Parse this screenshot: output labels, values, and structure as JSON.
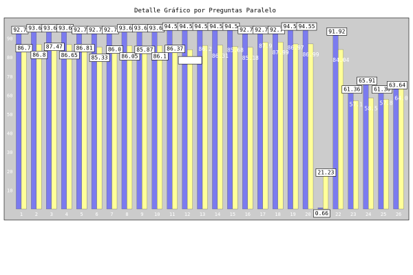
{
  "chart_data": {
    "type": "bar",
    "title": "Detalle Gráfico por Preguntas Paralelo",
    "xlabel": "",
    "ylabel": "",
    "ylim": [
      0,
      100
    ],
    "yticks": [
      10,
      20,
      30,
      40,
      50,
      60,
      70,
      80,
      90
    ],
    "grid": false,
    "legend": "none",
    "categories": [
      "1",
      "2",
      "3",
      "4",
      "5",
      "6",
      "7",
      "8",
      "9",
      "10",
      "11",
      "12",
      "13",
      "14",
      "15",
      "16",
      "17",
      "18",
      "19",
      "20",
      "21",
      "22",
      "23",
      "24",
      "25",
      "26"
    ],
    "series": [
      {
        "color": "#7b7bef",
        "values": [
          92.7,
          93.6,
          93.6,
          93.6,
          92.7,
          92.7,
          92.7,
          93.6,
          93.6,
          93.6,
          94.5,
          94.5,
          94.5,
          94.5,
          94.5,
          92.7,
          92.7,
          92.7,
          94.55,
          94.55,
          0.66,
          91.92,
          61.36,
          65.91,
          61.36,
          63.64
        ],
        "labels": [
          "92.7",
          "93.6",
          "93.6",
          "93.6",
          "92.7",
          "92.7",
          "92.7",
          "93.6",
          "93.6",
          "93.6",
          "94.5",
          "94.5",
          "94.5",
          "94.5",
          "94.5",
          "92.7",
          "92.7",
          "92.7",
          "94.55",
          "94.55",
          "0.66",
          "91.92",
          "61.36",
          "65.91",
          "61.36",
          "63.64"
        ]
      },
      {
        "color": "#ffff99",
        "values": [
          86.7,
          86.8,
          87.47,
          86.65,
          86.81,
          85.33,
          86.0,
          86.05,
          85.87,
          86.1,
          86.37,
          84.0,
          86.2,
          86.31,
          85.68,
          85.18,
          87.9,
          87.99,
          86.97,
          86.99,
          21.23,
          84.04,
          57.1,
          58.5,
          57.8,
          64.0
        ],
        "labels": [
          "86.7",
          "86.8",
          "87.47",
          "86.65",
          "86.81",
          "85.33",
          "86.0",
          "86.05",
          "85.87",
          "86.1",
          "86.37",
          "",
          "86.2",
          "86.31",
          "85.68",
          "85.18",
          "87.9",
          "87.99",
          "86.97",
          "86.99",
          "21.23",
          "84.04",
          "57.1",
          "58.5",
          "57.8",
          "64.0"
        ]
      }
    ]
  }
}
